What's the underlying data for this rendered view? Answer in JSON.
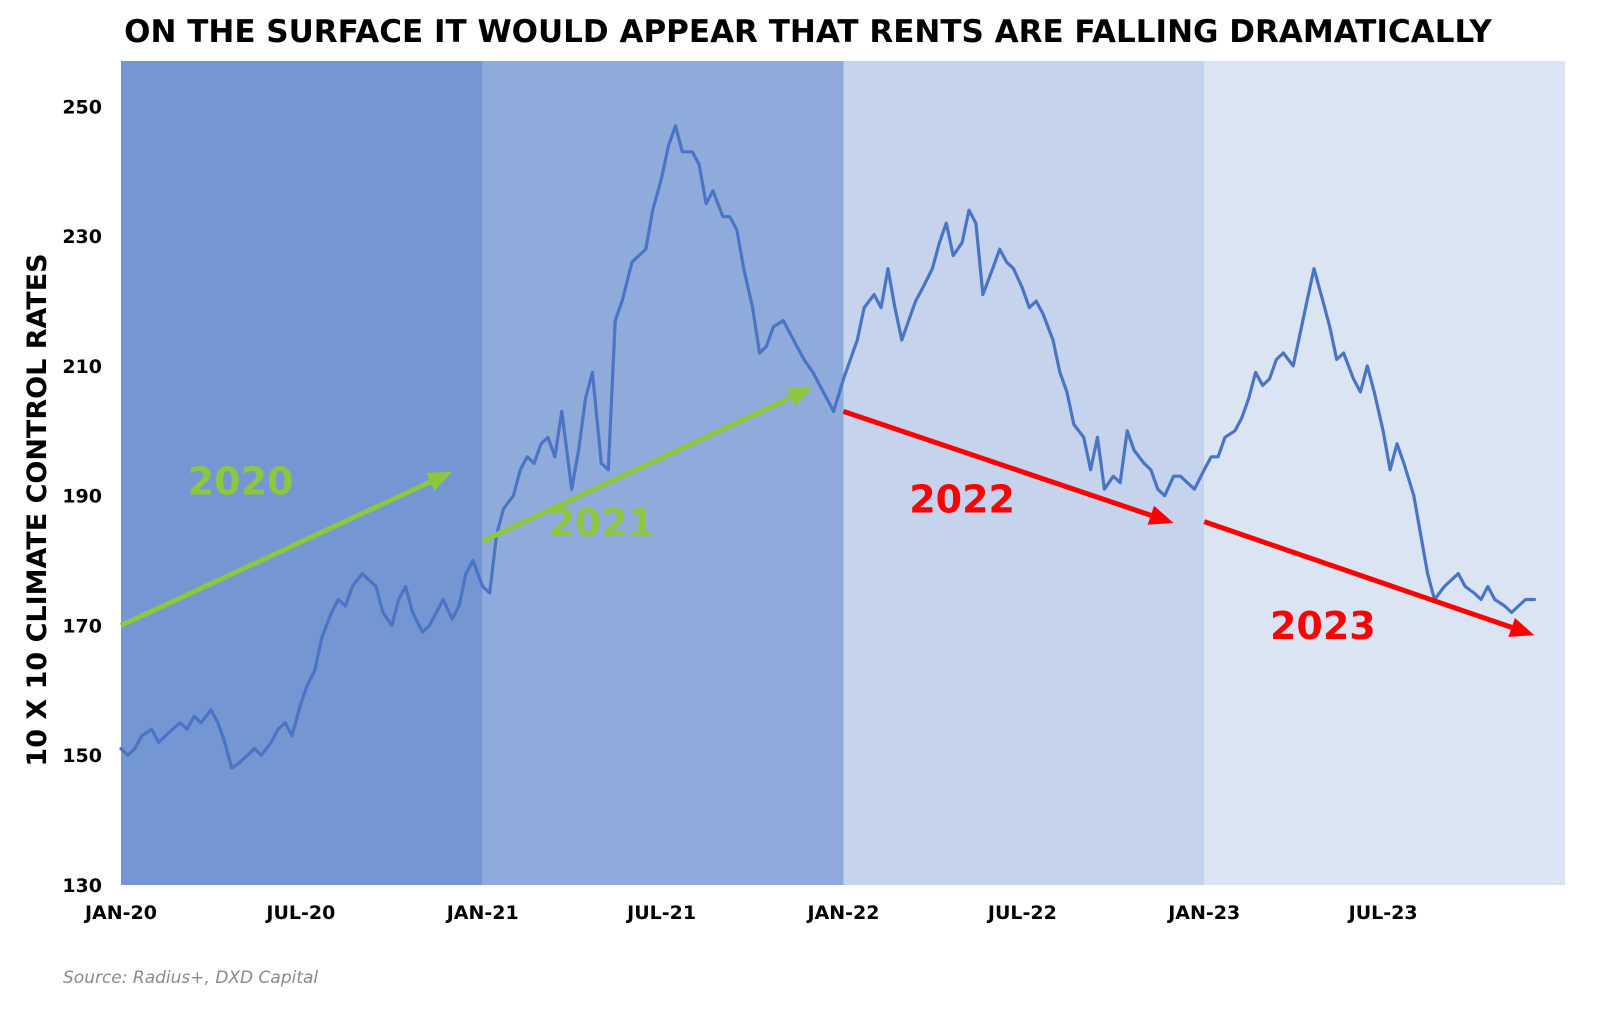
{
  "chart_data": {
    "type": "line",
    "title": "ON THE SURFACE IT WOULD APPEAR THAT RENTS ARE FALLING DRAMATICALLY",
    "xlabel": "",
    "ylabel": "10 X 10 CLIMATE CONTROL RATES",
    "source": "Source: Radius+, DXD Capital",
    "x_range": [
      "2020-01",
      "2024-01"
    ],
    "ylim": [
      130,
      257
    ],
    "y_ticks": [
      130,
      150,
      170,
      190,
      210,
      230,
      250
    ],
    "x_ticks": [
      "JAN-20",
      "JUL-20",
      "JAN-21",
      "JUL-21",
      "JAN-22",
      "JUL-22",
      "JAN-23",
      "JUL-23"
    ],
    "x_tick_dates": [
      "2020-01",
      "2020-07",
      "2021-01",
      "2021-07",
      "2022-01",
      "2022-07",
      "2023-01",
      "2023-07"
    ],
    "grid": false,
    "line_color": "#4a74c4",
    "bands": [
      {
        "label": "2020",
        "start": "2020-01",
        "end": "2021-01",
        "color": "#7496d3"
      },
      {
        "label": "2021",
        "start": "2021-01",
        "end": "2022-01",
        "color": "#8fabdc"
      },
      {
        "label": "2022",
        "start": "2022-01",
        "end": "2023-01",
        "color": "#c5d3ec"
      },
      {
        "label": "2023",
        "start": "2023-01",
        "end": "2024-01",
        "color": "#dbe4f3"
      }
    ],
    "annotations": [
      {
        "text": "2020",
        "color": "#8dc63f",
        "at": [
          "2020-05",
          190.2
        ],
        "arrow": [
          [
            "2020-01",
            170
          ],
          [
            "2020-12",
            193.7
          ]
        ]
      },
      {
        "text": "2021",
        "color": "#8dc63f",
        "at": [
          "2021-05",
          183.8
        ],
        "arrow": [
          [
            "2021-01",
            183
          ],
          [
            "2021-12",
            206.7
          ]
        ]
      },
      {
        "text": "2022",
        "color": "#ff0000",
        "at": [
          "2022-05",
          187.4
        ],
        "arrow": [
          [
            "2022-01",
            203
          ],
          [
            "2022-12",
            185.8
          ]
        ]
      },
      {
        "text": "2023",
        "color": "#ff0000",
        "at": [
          "2023-05",
          167.9
        ],
        "arrow": [
          [
            "2023-01",
            186
          ],
          [
            "2023-12",
            168.5
          ]
        ]
      }
    ],
    "series": [
      {
        "values": [
          [
            "2020-01-01",
            151
          ],
          [
            "2020-01-08",
            150
          ],
          [
            "2020-01-15",
            151
          ],
          [
            "2020-01-22",
            153
          ],
          [
            "2020-02-01",
            154
          ],
          [
            "2020-02-08",
            152
          ],
          [
            "2020-02-15",
            153
          ],
          [
            "2020-02-22",
            154
          ],
          [
            "2020-03-01",
            155
          ],
          [
            "2020-03-08",
            154
          ],
          [
            "2020-03-15",
            156
          ],
          [
            "2020-03-22",
            155
          ],
          [
            "2020-04-01",
            157
          ],
          [
            "2020-04-08",
            155
          ],
          [
            "2020-04-15",
            152
          ],
          [
            "2020-04-22",
            148
          ],
          [
            "2020-05-01",
            149
          ],
          [
            "2020-05-08",
            150
          ],
          [
            "2020-05-15",
            151
          ],
          [
            "2020-05-22",
            150
          ],
          [
            "2020-06-01",
            152
          ],
          [
            "2020-06-08",
            154
          ],
          [
            "2020-06-15",
            155
          ],
          [
            "2020-06-22",
            153
          ],
          [
            "2020-07-01",
            158
          ],
          [
            "2020-07-08",
            161
          ],
          [
            "2020-07-15",
            163
          ],
          [
            "2020-07-22",
            168
          ],
          [
            "2020-08-01",
            172
          ],
          [
            "2020-08-08",
            174
          ],
          [
            "2020-08-15",
            173
          ],
          [
            "2020-08-22",
            176
          ],
          [
            "2020-09-01",
            178
          ],
          [
            "2020-09-08",
            177
          ],
          [
            "2020-09-15",
            176
          ],
          [
            "2020-09-22",
            172
          ],
          [
            "2020-10-01",
            170
          ],
          [
            "2020-10-08",
            174
          ],
          [
            "2020-10-15",
            176
          ],
          [
            "2020-10-22",
            172
          ],
          [
            "2020-11-01",
            169
          ],
          [
            "2020-11-08",
            170
          ],
          [
            "2020-11-15",
            172
          ],
          [
            "2020-11-22",
            174
          ],
          [
            "2020-12-01",
            171
          ],
          [
            "2020-12-08",
            173
          ],
          [
            "2020-12-15",
            178
          ],
          [
            "2020-12-22",
            180
          ],
          [
            "2021-01-01",
            176
          ],
          [
            "2021-01-08",
            175
          ],
          [
            "2021-01-15",
            184
          ],
          [
            "2021-01-22",
            188
          ],
          [
            "2021-02-01",
            190
          ],
          [
            "2021-02-08",
            194
          ],
          [
            "2021-02-15",
            196
          ],
          [
            "2021-02-22",
            195
          ],
          [
            "2021-03-01",
            198
          ],
          [
            "2021-03-08",
            199
          ],
          [
            "2021-03-15",
            196
          ],
          [
            "2021-03-22",
            203
          ],
          [
            "2021-04-01",
            191
          ],
          [
            "2021-04-08",
            197
          ],
          [
            "2021-04-15",
            205
          ],
          [
            "2021-04-22",
            209
          ],
          [
            "2021-05-01",
            195
          ],
          [
            "2021-05-08",
            194
          ],
          [
            "2021-05-15",
            217
          ],
          [
            "2021-05-22",
            220
          ],
          [
            "2021-06-01",
            226
          ],
          [
            "2021-06-08",
            227
          ],
          [
            "2021-06-15",
            228
          ],
          [
            "2021-06-22",
            234
          ],
          [
            "2021-07-01",
            239
          ],
          [
            "2021-07-08",
            244
          ],
          [
            "2021-07-15",
            247
          ],
          [
            "2021-07-22",
            243
          ],
          [
            "2021-08-01",
            243
          ],
          [
            "2021-08-08",
            241
          ],
          [
            "2021-08-15",
            235
          ],
          [
            "2021-08-22",
            237
          ],
          [
            "2021-09-01",
            233
          ],
          [
            "2021-09-08",
            233
          ],
          [
            "2021-09-15",
            231
          ],
          [
            "2021-09-22",
            225
          ],
          [
            "2021-10-01",
            219
          ],
          [
            "2021-10-08",
            212
          ],
          [
            "2021-10-15",
            213
          ],
          [
            "2021-10-22",
            216
          ],
          [
            "2021-11-01",
            217
          ],
          [
            "2021-11-08",
            215
          ],
          [
            "2021-11-15",
            213
          ],
          [
            "2021-11-22",
            211
          ],
          [
            "2021-12-01",
            209
          ],
          [
            "2021-12-08",
            207
          ],
          [
            "2021-12-15",
            205
          ],
          [
            "2021-12-22",
            203
          ],
          [
            "2022-01-01",
            208
          ],
          [
            "2022-01-08",
            211
          ],
          [
            "2022-01-15",
            214
          ],
          [
            "2022-01-22",
            219
          ],
          [
            "2022-02-01",
            221
          ],
          [
            "2022-02-08",
            219
          ],
          [
            "2022-02-15",
            225
          ],
          [
            "2022-02-22",
            219
          ],
          [
            "2022-03-01",
            214
          ],
          [
            "2022-03-08",
            217
          ],
          [
            "2022-03-15",
            220
          ],
          [
            "2022-03-22",
            222
          ],
          [
            "2022-04-01",
            225
          ],
          [
            "2022-04-08",
            229
          ],
          [
            "2022-04-15",
            232
          ],
          [
            "2022-04-22",
            227
          ],
          [
            "2022-05-01",
            229
          ],
          [
            "2022-05-08",
            234
          ],
          [
            "2022-05-15",
            232
          ],
          [
            "2022-05-22",
            221
          ],
          [
            "2022-06-01",
            225
          ],
          [
            "2022-06-08",
            228
          ],
          [
            "2022-06-15",
            226
          ],
          [
            "2022-06-22",
            225
          ],
          [
            "2022-07-01",
            222
          ],
          [
            "2022-07-08",
            219
          ],
          [
            "2022-07-15",
            220
          ],
          [
            "2022-07-22",
            218
          ],
          [
            "2022-08-01",
            214
          ],
          [
            "2022-08-08",
            209
          ],
          [
            "2022-08-15",
            206
          ],
          [
            "2022-08-22",
            201
          ],
          [
            "2022-09-01",
            199
          ],
          [
            "2022-09-08",
            194
          ],
          [
            "2022-09-15",
            199
          ],
          [
            "2022-09-22",
            191
          ],
          [
            "2022-10-01",
            193
          ],
          [
            "2022-10-08",
            192
          ],
          [
            "2022-10-15",
            200
          ],
          [
            "2022-10-22",
            197
          ],
          [
            "2022-11-01",
            195
          ],
          [
            "2022-11-08",
            194
          ],
          [
            "2022-11-15",
            191
          ],
          [
            "2022-11-22",
            190
          ],
          [
            "2022-12-01",
            193
          ],
          [
            "2022-12-08",
            193
          ],
          [
            "2022-12-15",
            192
          ],
          [
            "2022-12-22",
            191
          ],
          [
            "2023-01-01",
            194
          ],
          [
            "2023-01-08",
            196
          ],
          [
            "2023-01-15",
            196
          ],
          [
            "2023-01-22",
            199
          ],
          [
            "2023-02-01",
            200
          ],
          [
            "2023-02-08",
            202
          ],
          [
            "2023-02-15",
            205
          ],
          [
            "2023-02-22",
            209
          ],
          [
            "2023-03-01",
            207
          ],
          [
            "2023-03-08",
            208
          ],
          [
            "2023-03-15",
            211
          ],
          [
            "2023-03-22",
            212
          ],
          [
            "2023-04-01",
            210
          ],
          [
            "2023-04-08",
            215
          ],
          [
            "2023-04-15",
            220
          ],
          [
            "2023-04-22",
            225
          ],
          [
            "2023-05-01",
            220
          ],
          [
            "2023-05-08",
            216
          ],
          [
            "2023-05-15",
            211
          ],
          [
            "2023-05-22",
            212
          ],
          [
            "2023-06-01",
            208
          ],
          [
            "2023-06-08",
            206
          ],
          [
            "2023-06-15",
            210
          ],
          [
            "2023-06-22",
            206
          ],
          [
            "2023-07-01",
            200
          ],
          [
            "2023-07-08",
            194
          ],
          [
            "2023-07-15",
            198
          ],
          [
            "2023-07-22",
            195
          ],
          [
            "2023-08-01",
            190
          ],
          [
            "2023-08-08",
            184
          ],
          [
            "2023-08-15",
            178
          ],
          [
            "2023-08-22",
            174
          ],
          [
            "2023-09-01",
            176
          ],
          [
            "2023-09-08",
            177
          ],
          [
            "2023-09-15",
            178
          ],
          [
            "2023-09-22",
            176
          ],
          [
            "2023-10-01",
            175
          ],
          [
            "2023-10-08",
            174
          ],
          [
            "2023-10-15",
            176
          ],
          [
            "2023-10-22",
            174
          ],
          [
            "2023-11-01",
            173
          ],
          [
            "2023-11-08",
            172
          ],
          [
            "2023-11-15",
            173
          ],
          [
            "2023-11-22",
            174
          ],
          [
            "2023-12-01",
            174
          ]
        ]
      }
    ]
  }
}
